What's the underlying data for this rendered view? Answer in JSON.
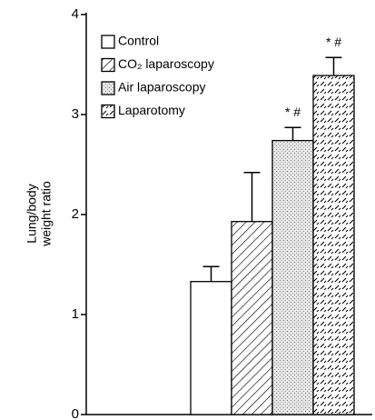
{
  "chart_data": {
    "type": "bar",
    "ylabel": [
      "Lung/body",
      "weight ratio"
    ],
    "ylim": [
      0,
      4
    ],
    "yticks": [
      0,
      1,
      2,
      3,
      4
    ],
    "series": [
      {
        "name": "Control",
        "pattern": "none",
        "values": [
          1.33
        ],
        "errors": [
          0.15
        ]
      },
      {
        "name": "CO₂ laparoscopy",
        "pattern": "diagonal",
        "values": [
          1.93
        ],
        "errors": [
          0.49
        ]
      },
      {
        "name": "Air laparoscopy",
        "pattern": "dots",
        "values": [
          2.74
        ],
        "errors": [
          0.13
        ],
        "annotation": "* #"
      },
      {
        "name": "Laparotomy",
        "pattern": "dashes",
        "values": [
          3.39
        ],
        "errors": [
          0.18
        ],
        "annotation": "* #"
      }
    ]
  }
}
